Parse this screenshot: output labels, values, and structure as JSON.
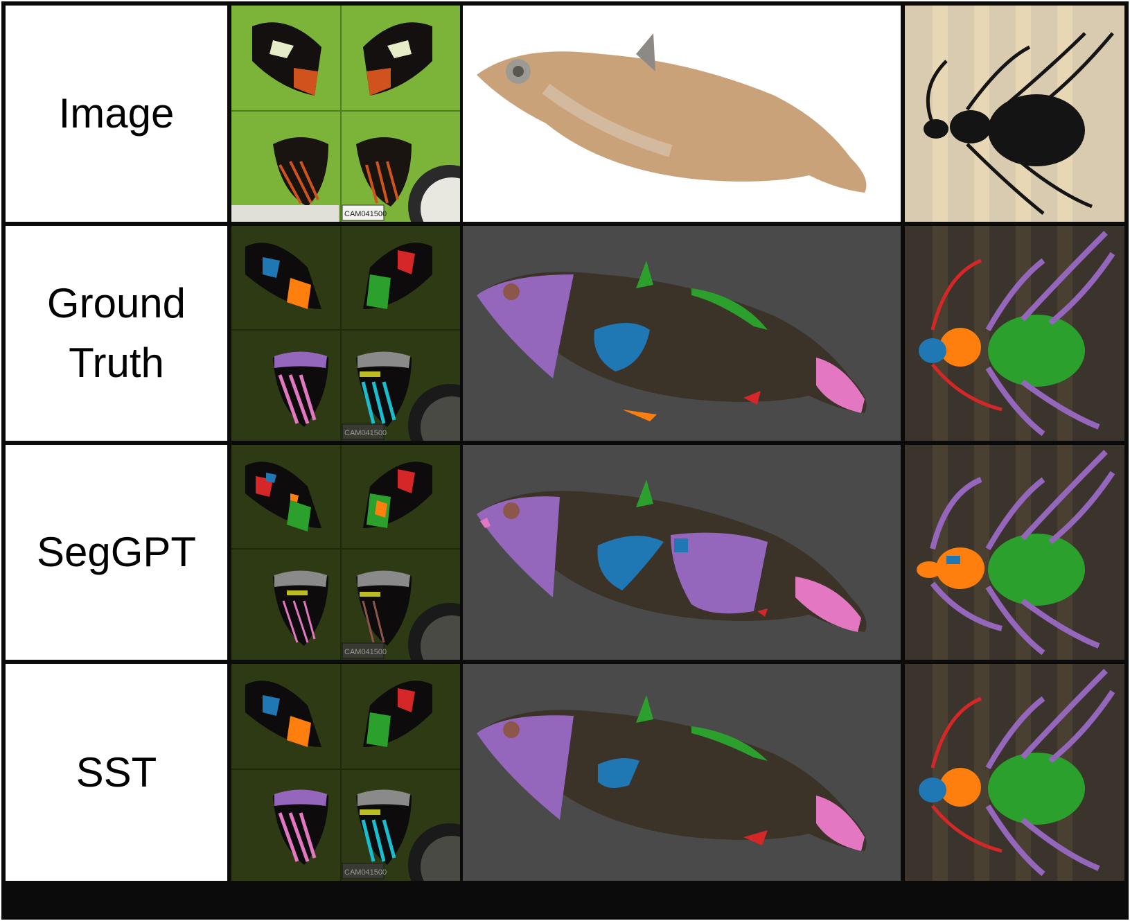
{
  "rows": [
    {
      "label": "Image",
      "kind": "image"
    },
    {
      "label": "Ground\nTruth",
      "kind": "gt"
    },
    {
      "label": "SegGPT",
      "kind": "seggpt"
    },
    {
      "label": "SST",
      "kind": "sst"
    }
  ],
  "specimen_tag": "CAM041500",
  "colors": {
    "border": "#0b0b0b",
    "butterfly_background": "#7cb43a",
    "butterfly_background_dark": "#2d3a14",
    "mask_background": "#4a4a4a",
    "beetle_background": "#d9cbb0",
    "beetle_background_dark": "#3b342c",
    "seg_purple": "#9467bd",
    "seg_blue": "#1f77b4",
    "seg_orange": "#ff7f0e",
    "seg_green": "#2ca02c",
    "seg_red": "#d62728",
    "seg_pink": "#e377c2",
    "seg_brown": "#8c564b",
    "seg_gray": "#8a8a8a",
    "seg_yellow": "#bcbd22",
    "seg_cyan": "#17becf"
  }
}
